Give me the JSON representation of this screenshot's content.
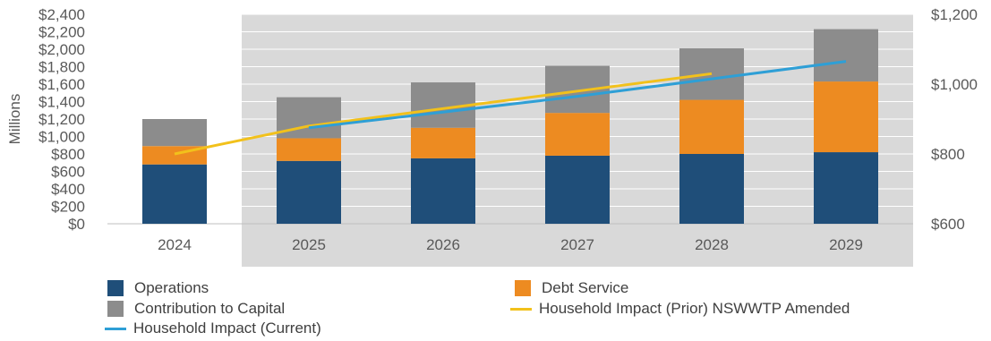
{
  "chart_data": {
    "type": "bar",
    "stacked": true,
    "categories": [
      "2024",
      "2025",
      "2026",
      "2027",
      "2028",
      "2029"
    ],
    "ylabel": "Millions",
    "ylim": [
      0,
      2400
    ],
    "y_ticks": [
      "$0",
      "$200",
      "$400",
      "$600",
      "$800",
      "$1,000",
      "$1,200",
      "$1,400",
      "$1,600",
      "$1,800",
      "$2,000",
      "$2,200",
      "$2,400"
    ],
    "y2lim": [
      600,
      1200
    ],
    "y2_ticks": [
      "$600",
      "$800",
      "$1,000",
      "$1,200"
    ],
    "series": [
      {
        "name": "Operations",
        "kind": "bar",
        "color": "#1f4e79",
        "values": [
          680,
          720,
          750,
          780,
          800,
          820
        ]
      },
      {
        "name": "Debt Service",
        "kind": "bar",
        "color": "#ed8b21",
        "values": [
          210,
          260,
          350,
          490,
          620,
          810
        ]
      },
      {
        "name": "Contribution to Capital",
        "kind": "bar",
        "color": "#8c8c8c",
        "values": [
          310,
          470,
          520,
          540,
          590,
          600
        ]
      },
      {
        "name": "Household Impact (Prior) NSWWTP Amended",
        "kind": "line",
        "axis": "secondary",
        "color": "#f2c11b",
        "values": [
          800,
          880,
          930,
          980,
          1030,
          null
        ]
      },
      {
        "name": "Household Impact (Current)",
        "kind": "line",
        "axis": "secondary",
        "color": "#2e9fd6",
        "values": [
          null,
          875,
          920,
          965,
          1015,
          1065
        ]
      }
    ],
    "legend": "bottom",
    "shaded_period": [
      "2025",
      "2029"
    ],
    "grid": true
  },
  "colors": {
    "shade": "#d9d9d9",
    "grid": "#ffffff",
    "text": "#595959"
  }
}
